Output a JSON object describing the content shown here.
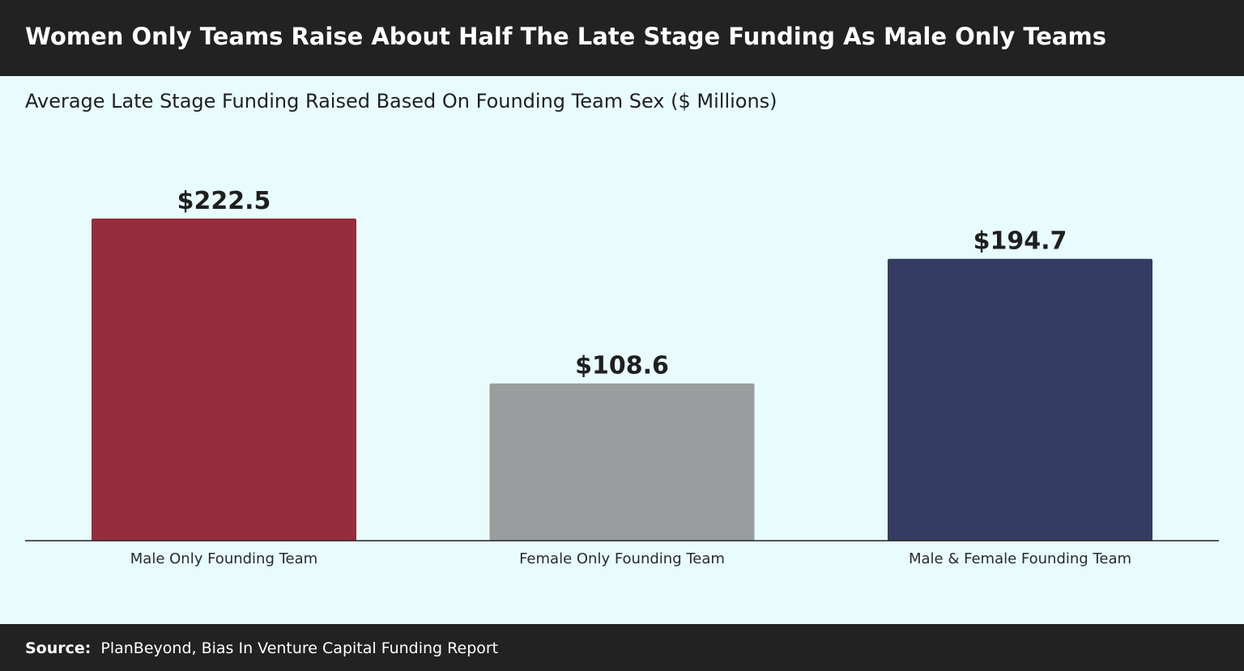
{
  "header": {
    "title": "Women Only Teams Raise About Half The Late Stage Funding As Male Only Teams"
  },
  "footer": {
    "source_label": "Source:",
    "source_text": "PlanBeyond, Bias In Venture Capital Funding Report"
  },
  "chart_data": {
    "type": "bar",
    "title": "Average Late Stage Funding Raised Based On Founding Team Sex ($ Millions)",
    "categories": [
      "Male Only Founding Team",
      "Female Only Founding Team",
      "Male & Female Founding Team"
    ],
    "values": [
      222.5,
      108.6,
      194.7
    ],
    "value_labels": [
      "$222.5",
      "$108.6",
      "$194.7"
    ],
    "colors": [
      "#952d3e",
      "#9a9c9d",
      "#353c61"
    ],
    "ylim": [
      0,
      222.5
    ],
    "grid": false,
    "legend": "none"
  },
  "colors": {
    "background": "#e8fcfe",
    "banner": "#222222",
    "axis": "#222222"
  }
}
